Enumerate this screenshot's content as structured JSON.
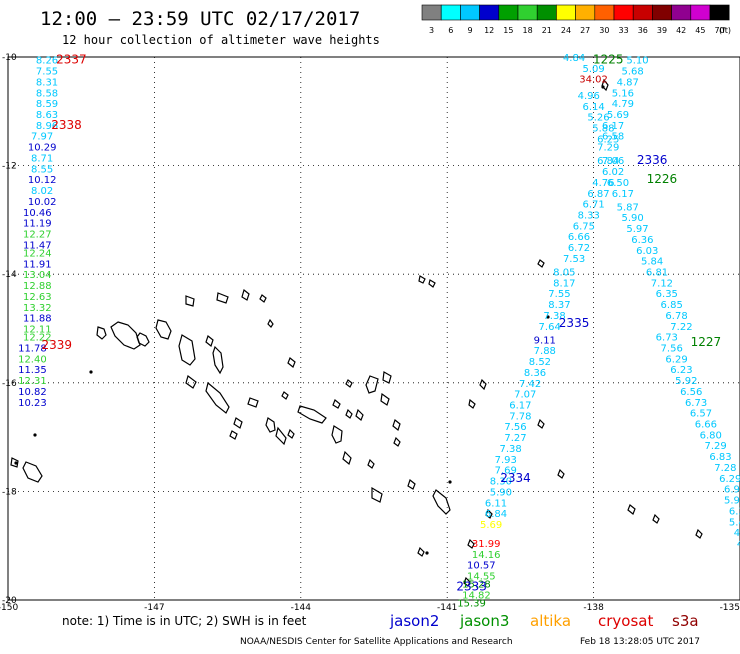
{
  "header": {
    "title": "12:00 – 23:59 UTC 02/17/2017",
    "subtitle": "12 hour collection of altimeter wave heights"
  },
  "color_scale": {
    "unit": "(ft)",
    "labels": [
      "3",
      "6",
      "9",
      "12",
      "15",
      "18",
      "21",
      "24",
      "27",
      "30",
      "33",
      "36",
      "39",
      "42",
      "45",
      "70"
    ],
    "colors": [
      "#808080",
      "#00ffff",
      "#00c8ff",
      "#0000cd",
      "#00a000",
      "#30d030",
      "#009000",
      "#ffff00",
      "#ffb000",
      "#ff6000",
      "#ff0000",
      "#c80000",
      "#800000",
      "#900090",
      "#d000d0",
      "#000000"
    ]
  },
  "axes": {
    "lon_ticks": [
      {
        "lon": -150,
        "label": "-150"
      },
      {
        "lon": -147,
        "label": "-147"
      },
      {
        "lon": -144,
        "label": "-144"
      },
      {
        "lon": -141,
        "label": "-141"
      },
      {
        "lon": -138,
        "label": "-138"
      },
      {
        "lon": -135,
        "label": "-135"
      }
    ],
    "lat_ticks": [
      {
        "lat": -10,
        "label": "-10"
      },
      {
        "lat": -12,
        "label": "-12"
      },
      {
        "lat": -14,
        "label": "-14"
      },
      {
        "lat": -16,
        "label": "-16"
      },
      {
        "lat": -18,
        "label": "-18"
      },
      {
        "lat": -20,
        "label": "-20"
      }
    ],
    "lon_range": [
      -150,
      -135
    ],
    "lat_range": [
      -20,
      -10
    ]
  },
  "tracks": [
    {
      "id": "2337",
      "color": "#dd0000",
      "lon": -148.7,
      "lat": -10.05
    },
    {
      "id": "2338",
      "color": "#dd0000",
      "lon": -148.8,
      "lat": -11.25
    },
    {
      "id": "2339",
      "color": "#dd0000",
      "lon": -149.0,
      "lat": -15.3
    },
    {
      "id": "1225",
      "color": "#008000",
      "lon": -137.7,
      "lat": -10.05
    },
    {
      "id": "2336",
      "color": "#0000cd",
      "lon": -136.8,
      "lat": -11.9
    },
    {
      "id": "1226",
      "color": "#008000",
      "lon": -136.6,
      "lat": -12.25
    },
    {
      "id": "2335",
      "color": "#0000cd",
      "lon": -138.4,
      "lat": -14.9
    },
    {
      "id": "1227",
      "color": "#008000",
      "lon": -135.7,
      "lat": -15.25
    },
    {
      "id": "2334",
      "color": "#0000cd",
      "lon": -139.6,
      "lat": -17.75
    },
    {
      "id": "2333",
      "color": "#0000cd",
      "lon": -140.5,
      "lat": -19.75
    }
  ],
  "observations": [
    {
      "lon": -149.2,
      "lat": -10.05,
      "value": "8.26",
      "color": "#00c8ff"
    },
    {
      "lon": -149.2,
      "lat": -10.25,
      "value": "7.55",
      "color": "#00c8ff"
    },
    {
      "lon": -149.2,
      "lat": -10.45,
      "value": "8.31",
      "color": "#00c8ff"
    },
    {
      "lon": -149.2,
      "lat": -10.65,
      "value": "8.58",
      "color": "#00c8ff"
    },
    {
      "lon": -149.2,
      "lat": -10.85,
      "value": "8.59",
      "color": "#00c8ff"
    },
    {
      "lon": -149.2,
      "lat": -11.05,
      "value": "8.63",
      "color": "#00c8ff"
    },
    {
      "lon": -149.2,
      "lat": -11.25,
      "value": "8.96",
      "color": "#00c8ff"
    },
    {
      "lon": -149.3,
      "lat": -11.45,
      "value": "7.97",
      "color": "#00c8ff"
    },
    {
      "lon": -149.3,
      "lat": -11.65,
      "value": "10.29",
      "color": "#0000cd"
    },
    {
      "lon": -149.3,
      "lat": -11.85,
      "value": "8.71",
      "color": "#00c8ff"
    },
    {
      "lon": -149.3,
      "lat": -12.05,
      "value": "8.55",
      "color": "#00c8ff"
    },
    {
      "lon": -149.3,
      "lat": -12.25,
      "value": "10.12",
      "color": "#0000cd"
    },
    {
      "lon": -149.3,
      "lat": -12.45,
      "value": "8.02",
      "color": "#00c8ff"
    },
    {
      "lon": -149.3,
      "lat": -12.65,
      "value": "10.02",
      "color": "#0000cd"
    },
    {
      "lon": -149.4,
      "lat": -12.85,
      "value": "10.46",
      "color": "#0000cd"
    },
    {
      "lon": -149.4,
      "lat": -13.05,
      "value": "11.19",
      "color": "#0000cd"
    },
    {
      "lon": -149.4,
      "lat": -13.25,
      "value": "12.27",
      "color": "#30d030"
    },
    {
      "lon": -149.4,
      "lat": -13.45,
      "value": "11.47",
      "color": "#0000cd"
    },
    {
      "lon": -149.4,
      "lat": -13.6,
      "value": "12.24",
      "color": "#30d030"
    },
    {
      "lon": -149.4,
      "lat": -13.8,
      "value": "11.91",
      "color": "#0000cd"
    },
    {
      "lon": -149.4,
      "lat": -14.0,
      "value": "13.04",
      "color": "#30d030"
    },
    {
      "lon": -149.4,
      "lat": -14.2,
      "value": "12.88",
      "color": "#30d030"
    },
    {
      "lon": -149.4,
      "lat": -14.4,
      "value": "12.63",
      "color": "#30d030"
    },
    {
      "lon": -149.4,
      "lat": -14.6,
      "value": "13.32",
      "color": "#30d030"
    },
    {
      "lon": -149.4,
      "lat": -14.8,
      "value": "11.88",
      "color": "#0000cd"
    },
    {
      "lon": -149.4,
      "lat": -15.0,
      "value": "12.11",
      "color": "#30d030"
    },
    {
      "lon": -149.4,
      "lat": -15.15,
      "value": "12.22",
      "color": "#30d030"
    },
    {
      "lon": -149.5,
      "lat": -15.35,
      "value": "11.78",
      "color": "#0000cd"
    },
    {
      "lon": -149.5,
      "lat": -15.55,
      "value": "12.40",
      "color": "#30d030"
    },
    {
      "lon": -149.5,
      "lat": -15.75,
      "value": "11.35",
      "color": "#0000cd"
    },
    {
      "lon": -149.5,
      "lat": -15.95,
      "value": "12.31",
      "color": "#30d030"
    },
    {
      "lon": -149.5,
      "lat": -16.15,
      "value": "10.82",
      "color": "#0000cd"
    },
    {
      "lon": -149.5,
      "lat": -16.35,
      "value": "10.23",
      "color": "#0000cd"
    },
    {
      "lon": -138.4,
      "lat": -10.0,
      "value": "4.84",
      "color": "#00c8ff"
    },
    {
      "lon": -138.0,
      "lat": -10.2,
      "value": "5.09",
      "color": "#00c8ff"
    },
    {
      "lon": -138.0,
      "lat": -10.4,
      "value": "34.02",
      "color": "#c80000"
    },
    {
      "lon": -138.1,
      "lat": -10.7,
      "value": "4.96",
      "color": "#00c8ff"
    },
    {
      "lon": -138.0,
      "lat": -10.9,
      "value": "6.14",
      "color": "#00c8ff"
    },
    {
      "lon": -137.9,
      "lat": -11.1,
      "value": "5.26",
      "color": "#00c8ff"
    },
    {
      "lon": -137.8,
      "lat": -11.3,
      "value": "5.88",
      "color": "#00c8ff"
    },
    {
      "lon": -137.7,
      "lat": -11.5,
      "value": "6.25",
      "color": "#00c8ff"
    },
    {
      "lon": -137.6,
      "lat": -11.9,
      "value": "7.06",
      "color": "#00c8ff"
    },
    {
      "lon": -137.8,
      "lat": -12.3,
      "value": "4.76",
      "color": "#00c8ff"
    },
    {
      "lon": -137.9,
      "lat": -12.5,
      "value": "6.87",
      "color": "#00c8ff"
    },
    {
      "lon": -138.0,
      "lat": -12.7,
      "value": "6.71",
      "color": "#00c8ff"
    },
    {
      "lon": -138.1,
      "lat": -12.9,
      "value": "8.33",
      "color": "#00c8ff"
    },
    {
      "lon": -138.2,
      "lat": -13.1,
      "value": "6.75",
      "color": "#00c8ff"
    },
    {
      "lon": -138.3,
      "lat": -13.3,
      "value": "6.66",
      "color": "#00c8ff"
    },
    {
      "lon": -138.3,
      "lat": -13.5,
      "value": "6.72",
      "color": "#00c8ff"
    },
    {
      "lon": -138.4,
      "lat": -13.7,
      "value": "7.53",
      "color": "#00c8ff"
    },
    {
      "lon": -138.6,
      "lat": -13.95,
      "value": "8.05",
      "color": "#00c8ff"
    },
    {
      "lon": -138.6,
      "lat": -14.15,
      "value": "8.17",
      "color": "#00c8ff"
    },
    {
      "lon": -138.7,
      "lat": -14.35,
      "value": "7.55",
      "color": "#00c8ff"
    },
    {
      "lon": -138.7,
      "lat": -14.55,
      "value": "8.37",
      "color": "#00c8ff"
    },
    {
      "lon": -138.8,
      "lat": -14.75,
      "value": "7.38",
      "color": "#00c8ff"
    },
    {
      "lon": -138.9,
      "lat": -14.95,
      "value": "7.64",
      "color": "#00c8ff"
    },
    {
      "lon": -139.0,
      "lat": -15.2,
      "value": "9.11",
      "color": "#0000cd"
    },
    {
      "lon": -139.0,
      "lat": -15.4,
      "value": "7.88",
      "color": "#00c8ff"
    },
    {
      "lon": -139.1,
      "lat": -15.6,
      "value": "8.52",
      "color": "#00c8ff"
    },
    {
      "lon": -139.2,
      "lat": -15.8,
      "value": "8.36",
      "color": "#00c8ff"
    },
    {
      "lon": -139.3,
      "lat": -16.0,
      "value": "7.42",
      "color": "#00c8ff"
    },
    {
      "lon": -139.4,
      "lat": -16.2,
      "value": "7.07",
      "color": "#00c8ff"
    },
    {
      "lon": -139.5,
      "lat": -16.4,
      "value": "6.17",
      "color": "#00c8ff"
    },
    {
      "lon": -139.5,
      "lat": -16.6,
      "value": "7.78",
      "color": "#00c8ff"
    },
    {
      "lon": -139.6,
      "lat": -16.8,
      "value": "7.56",
      "color": "#00c8ff"
    },
    {
      "lon": -139.6,
      "lat": -17.0,
      "value": "7.27",
      "color": "#00c8ff"
    },
    {
      "lon": -139.7,
      "lat": -17.2,
      "value": "7.38",
      "color": "#00c8ff"
    },
    {
      "lon": -139.8,
      "lat": -17.4,
      "value": "7.93",
      "color": "#00c8ff"
    },
    {
      "lon": -139.8,
      "lat": -17.6,
      "value": "7.69",
      "color": "#00c8ff"
    },
    {
      "lon": -139.9,
      "lat": -17.8,
      "value": "8.30",
      "color": "#00c8ff"
    },
    {
      "lon": -139.9,
      "lat": -18.0,
      "value": "5.90",
      "color": "#00c8ff"
    },
    {
      "lon": -140.0,
      "lat": -18.2,
      "value": "6.11",
      "color": "#00c8ff"
    },
    {
      "lon": -140.0,
      "lat": -18.4,
      "value": "6.84",
      "color": "#00c8ff"
    },
    {
      "lon": -140.1,
      "lat": -18.6,
      "value": "5.69",
      "color": "#ffff00"
    },
    {
      "lon": -140.2,
      "lat": -18.95,
      "value": "31.99",
      "color": "#ff0000"
    },
    {
      "lon": -140.2,
      "lat": -19.15,
      "value": "14.16",
      "color": "#30d030"
    },
    {
      "lon": -140.3,
      "lat": -19.35,
      "value": "10.57",
      "color": "#0000cd"
    },
    {
      "lon": -140.3,
      "lat": -19.55,
      "value": "14.55",
      "color": "#30d030"
    },
    {
      "lon": -140.4,
      "lat": -19.7,
      "value": "15.28",
      "color": "#009000"
    },
    {
      "lon": -140.4,
      "lat": -19.9,
      "value": "14.82",
      "color": "#30d030"
    },
    {
      "lon": -140.5,
      "lat": -20.05,
      "value": "15.39",
      "color": "#009000"
    },
    {
      "lon": -137.1,
      "lat": -10.05,
      "value": "5.10",
      "color": "#00c8ff"
    },
    {
      "lon": -137.2,
      "lat": -10.25,
      "value": "5.68",
      "color": "#00c8ff"
    },
    {
      "lon": -137.3,
      "lat": -10.45,
      "value": "4.87",
      "color": "#00c8ff"
    },
    {
      "lon": -137.4,
      "lat": -10.65,
      "value": "5.16",
      "color": "#00c8ff"
    },
    {
      "lon": -137.4,
      "lat": -10.85,
      "value": "4.79",
      "color": "#00c8ff"
    },
    {
      "lon": -137.5,
      "lat": -11.05,
      "value": "5.69",
      "color": "#00c8ff"
    },
    {
      "lon": -137.6,
      "lat": -11.25,
      "value": "6.17",
      "color": "#00c8ff"
    },
    {
      "lon": -137.6,
      "lat": -11.45,
      "value": "6.58",
      "color": "#00c8ff"
    },
    {
      "lon": -137.7,
      "lat": -11.65,
      "value": "7.29",
      "color": "#00c8ff"
    },
    {
      "lon": -137.7,
      "lat": -11.9,
      "value": "6.84",
      "color": "#00c8ff"
    },
    {
      "lon": -137.6,
      "lat": -12.1,
      "value": "6.02",
      "color": "#00c8ff"
    },
    {
      "lon": -137.5,
      "lat": -12.3,
      "value": "6.50",
      "color": "#00c8ff"
    },
    {
      "lon": -137.4,
      "lat": -12.5,
      "value": "6.17",
      "color": "#00c8ff"
    },
    {
      "lon": -137.3,
      "lat": -12.75,
      "value": "5.87",
      "color": "#00c8ff"
    },
    {
      "lon": -137.2,
      "lat": -12.95,
      "value": "5.90",
      "color": "#00c8ff"
    },
    {
      "lon": -137.1,
      "lat": -13.15,
      "value": "5.97",
      "color": "#00c8ff"
    },
    {
      "lon": -137.0,
      "lat": -13.35,
      "value": "6.36",
      "color": "#00c8ff"
    },
    {
      "lon": -136.9,
      "lat": -13.55,
      "value": "6.03",
      "color": "#00c8ff"
    },
    {
      "lon": -136.8,
      "lat": -13.75,
      "value": "5.84",
      "color": "#00c8ff"
    },
    {
      "lon": -136.7,
      "lat": -13.95,
      "value": "6.81",
      "color": "#00c8ff"
    },
    {
      "lon": -136.6,
      "lat": -14.15,
      "value": "7.12",
      "color": "#00c8ff"
    },
    {
      "lon": -136.5,
      "lat": -14.35,
      "value": "6.35",
      "color": "#00c8ff"
    },
    {
      "lon": -136.4,
      "lat": -14.55,
      "value": "6.85",
      "color": "#00c8ff"
    },
    {
      "lon": -136.3,
      "lat": -14.75,
      "value": "6.78",
      "color": "#00c8ff"
    },
    {
      "lon": -136.2,
      "lat": -14.95,
      "value": "7.22",
      "color": "#00c8ff"
    },
    {
      "lon": -136.5,
      "lat": -15.15,
      "value": "6.73",
      "color": "#00c8ff"
    },
    {
      "lon": -136.4,
      "lat": -15.35,
      "value": "7.56",
      "color": "#00c8ff"
    },
    {
      "lon": -136.3,
      "lat": -15.55,
      "value": "6.29",
      "color": "#00c8ff"
    },
    {
      "lon": -136.2,
      "lat": -15.75,
      "value": "6.23",
      "color": "#00c8ff"
    },
    {
      "lon": -136.1,
      "lat": -15.95,
      "value": "5.92",
      "color": "#00c8ff"
    },
    {
      "lon": -136.0,
      "lat": -16.15,
      "value": "6.56",
      "color": "#00c8ff"
    },
    {
      "lon": -135.9,
      "lat": -16.35,
      "value": "6.73",
      "color": "#00c8ff"
    },
    {
      "lon": -135.8,
      "lat": -16.55,
      "value": "6.57",
      "color": "#00c8ff"
    },
    {
      "lon": -135.7,
      "lat": -16.75,
      "value": "6.66",
      "color": "#00c8ff"
    },
    {
      "lon": -135.6,
      "lat": -16.95,
      "value": "6.80",
      "color": "#00c8ff"
    },
    {
      "lon": -135.5,
      "lat": -17.15,
      "value": "7.29",
      "color": "#00c8ff"
    },
    {
      "lon": -135.4,
      "lat": -17.35,
      "value": "6.83",
      "color": "#00c8ff"
    },
    {
      "lon": -135.3,
      "lat": -17.55,
      "value": "7.28",
      "color": "#00c8ff"
    },
    {
      "lon": -135.2,
      "lat": -17.75,
      "value": "6.29",
      "color": "#00c8ff"
    },
    {
      "lon": -135.1,
      "lat": -17.95,
      "value": "6.97",
      "color": "#00c8ff"
    },
    {
      "lon": -135.1,
      "lat": -18.15,
      "value": "5.94",
      "color": "#00c8ff"
    },
    {
      "lon": -135.0,
      "lat": -18.35,
      "value": "6.33",
      "color": "#00c8ff"
    },
    {
      "lon": -135.0,
      "lat": -18.55,
      "value": "5.46",
      "color": "#00c8ff"
    },
    {
      "lon": -134.9,
      "lat": -18.75,
      "value": "4.76",
      "color": "#00c8ff"
    },
    {
      "lon": -134.9,
      "lat": -18.95,
      "value": "4.5",
      "color": "#00c8ff"
    },
    {
      "lon": -134.8,
      "lat": -19.15,
      "value": "5.4",
      "color": "#00c8ff"
    },
    {
      "lon": -134.8,
      "lat": -19.35,
      "value": "5.",
      "color": "#00c8ff"
    }
  ],
  "note": {
    "text": "note: 1) Time is in UTC; 2) SWH is in feet"
  },
  "legend": [
    {
      "name": "jason2",
      "color": "#0000cd"
    },
    {
      "name": "jason3",
      "color": "#009000"
    },
    {
      "name": "altika",
      "color": "#ffa000"
    },
    {
      "name": "cryosat",
      "color": "#dd0000"
    },
    {
      "name": "s3a",
      "color": "#900000"
    }
  ],
  "footer": {
    "credit": "NOAA/NESDIS Center for Satellite Applications and Research",
    "timestamp": "Feb 18 13:28:05 UTC 2017"
  }
}
